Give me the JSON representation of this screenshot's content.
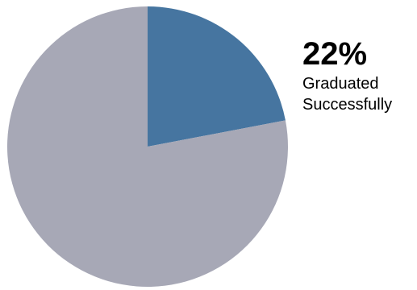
{
  "chart_data": {
    "type": "pie",
    "slices": [
      {
        "value": 22,
        "color": "#4675a0"
      },
      {
        "value": 78,
        "color": "#a7a8b6"
      }
    ],
    "callout": {
      "value": "22%",
      "label_line1": "Graduated",
      "label_line2": "Successfully"
    }
  }
}
